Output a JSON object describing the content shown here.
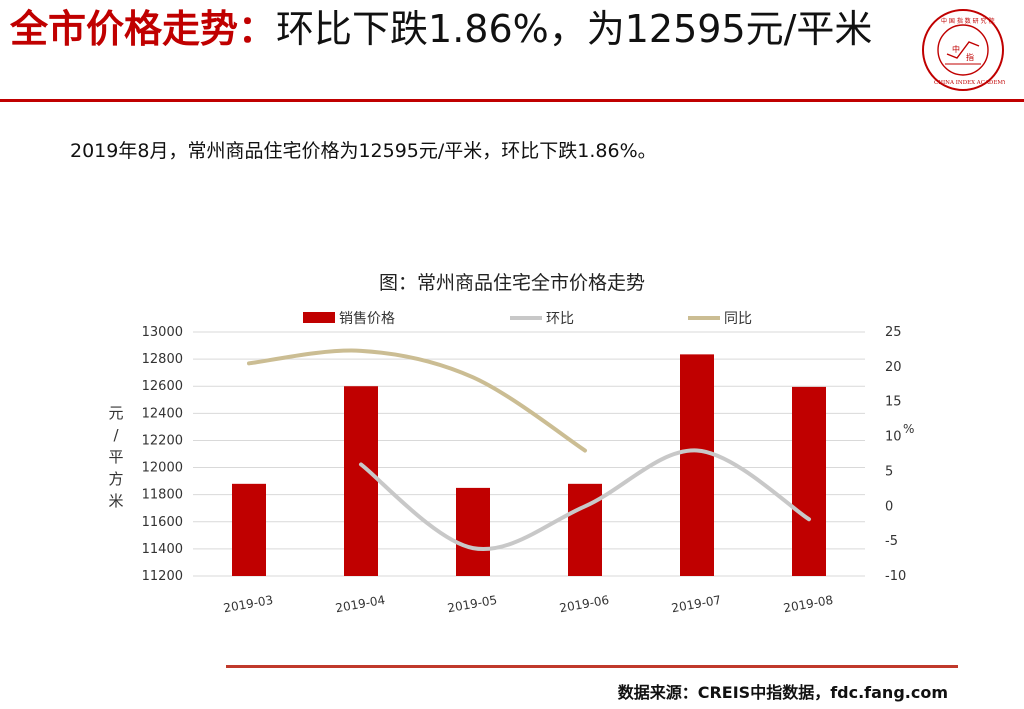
{
  "header": {
    "title_lead": "全市价格走势：",
    "title_rest": "环比下跌1.86%，为12595元/平米"
  },
  "logo": {
    "seal_text": "中国指数研究院",
    "ring_text": "CHINA INDEX ACADEMY",
    "center_text": "中指"
  },
  "summary": "2019年8月，常州商品住宅价格为12595元/平米，环比下跌1.86%。",
  "source": "数据来源：CREIS中指数据，fdc.fang.com",
  "colors": {
    "accent": "#c00000",
    "bar": "#c00000",
    "mom_line": "#c8c8c8",
    "yoy_line": "#cbbd93",
    "grid": "#d9d9d9"
  },
  "chart_data": {
    "type": "bar",
    "title": "图：常州商品住宅全市价格走势",
    "categories": [
      "2019-03",
      "2019-04",
      "2019-05",
      "2019-06",
      "2019-07",
      "2019-08"
    ],
    "series": [
      {
        "name": "销售价格",
        "type": "bar",
        "axis": "left",
        "values": [
          11880,
          12600,
          11850,
          11880,
          12835,
          12595
        ]
      },
      {
        "name": "环比",
        "type": "line",
        "axis": "right",
        "values": [
          null,
          6.0,
          -6.0,
          0.0,
          8.0,
          -1.86
        ]
      },
      {
        "name": "同比",
        "type": "line",
        "axis": "right",
        "values": [
          20.5,
          22.3,
          18.5,
          8.0,
          null,
          null
        ]
      }
    ],
    "ylabel": "元/平方米",
    "y2label": "%",
    "ylim": [
      11200,
      13000
    ],
    "y2lim": [
      -10,
      25
    ],
    "yticks": [
      11200,
      11400,
      11600,
      11800,
      12000,
      12200,
      12400,
      12600,
      12800,
      13000
    ],
    "y2ticks": [
      -10,
      -5,
      0,
      5,
      10,
      15,
      20,
      25
    ],
    "legend": "top",
    "grid": true
  }
}
